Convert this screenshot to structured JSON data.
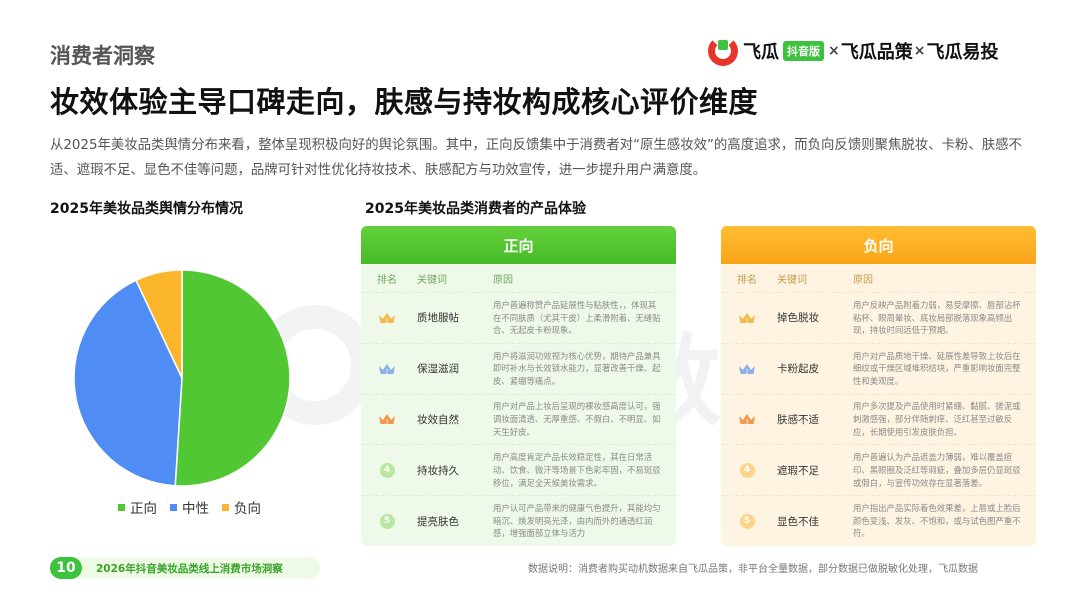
{
  "header": {
    "section": "消费者洞察",
    "headline": "妆效体验主导口碑走向，肤感与持妆构成核心评价维度",
    "intro": "从2025年美妆品类舆情分布来看，整体呈现积极向好的舆论氛围。其中，正向反馈集中于消费者对“原生感妆效”的高度追求，而负向反馈则聚焦脱妆、卡粉、肤感不适、遮瑕不足、显色不佳等问题，品牌可针对性优化持妆技术、肤感配方与功效宣传，进一步提升用户满意度。"
  },
  "logo": {
    "name": "飞瓜",
    "badge": "抖音版",
    "sep": "×",
    "part2": "飞瓜品策",
    "part3": "飞瓜易投"
  },
  "watermark": {
    "text": "飞瓜数据"
  },
  "left_chart_title": "2025年美妆品类舆情分布情况",
  "right_title": "2025年美妆品类消费者的产品体验",
  "chart_data": {
    "type": "pie",
    "title": "2025年美妆品类舆情分布情况",
    "labels": [
      "正向",
      "中性",
      "负向"
    ],
    "values": [
      51,
      42,
      7
    ],
    "colors": [
      "#52c734",
      "#4f8df5",
      "#fbb52b"
    ],
    "start_angle_deg": 0,
    "legend_position": "bottom"
  },
  "table": {
    "col_rank": "排名",
    "col_keyword": "关键词",
    "col_reason": "原因",
    "positive": {
      "header": "正向",
      "rows": [
        {
          "rank": "1",
          "keyword": "质地服帖",
          "reason": "用户普遍称赞产品延展性与贴肤性，，体现其在不同肤质（尤其干皮）上柔滑附着、无缝贴合、无起皮卡粉现象。"
        },
        {
          "rank": "2",
          "keyword": "保湿滋润",
          "reason": "用户将滋润功效视为核心优势，期待产品兼具即时补水与长效锁水能力，显著改善干燥、起皮、紧绷等痛点。"
        },
        {
          "rank": "3",
          "keyword": "妆效自然",
          "reason": "用户对产品上妆后呈现的裸妆感高度认可，强调妆面清透、无厚重感、不假白、不明显、如天生好皮。"
        },
        {
          "rank": "4",
          "keyword": "持妆持久",
          "reason": "用户高度肯定产品长效稳定性，其在日常活动、饮食、微汗等场景下色彩牢固，不易斑驳移位，满足全天候美妆需求。"
        },
        {
          "rank": "5",
          "keyword": "提亮肤色",
          "reason": "用户认可产品带来的健康气色提升，其能均匀暗沉、焕发明亮光泽，由内而外的通透红润感，增强面部立体与活力"
        }
      ]
    },
    "negative": {
      "header": "负向",
      "rows": [
        {
          "rank": "1",
          "keyword": "掉色脱妆",
          "reason": "用户反映产品附着力弱，易受摩擦、唇部沾杯粘杯、眼周晕妆、底妆局部脱落现象高频出现，持妆时间远低于预期。"
        },
        {
          "rank": "2",
          "keyword": "卡粉起皮",
          "reason": "用户对产品质地干燥、延展性差导致上妆后在细纹或干燥区域堆积结块，严重影响妆面完整性和美观度。"
        },
        {
          "rank": "3",
          "keyword": "肤感不适",
          "reason": "用户多次提及产品使用时紧绷、黏腻、搓泥或刺激感强，部分伴随刺痒、泛红甚至过敏反应，长期使用引发皮肤负担。"
        },
        {
          "rank": "4",
          "keyword": "遮瑕不足",
          "reason": "用户普遍认为产品遮盖力薄弱，难以覆盖痘印、黑眼圈及泛红等瑕疵，叠加多层仍显斑驳或假白，与宣传功效存在显著落差。"
        },
        {
          "rank": "5",
          "keyword": "显色不佳",
          "reason": "用户指出产品实际着色效果差，上唇或上脸后颜色变浅、发灰、不饱和，或与试色图严重不符。"
        }
      ]
    }
  },
  "footer": {
    "page_number": "10",
    "report_name": "2026年抖音美妆品类线上消费市场洞察",
    "data_note": "数据说明：消费者购买动机数据来自飞瓜品策，非平台全量数据，部分数据已做脱敏化处理，飞瓜数据"
  }
}
